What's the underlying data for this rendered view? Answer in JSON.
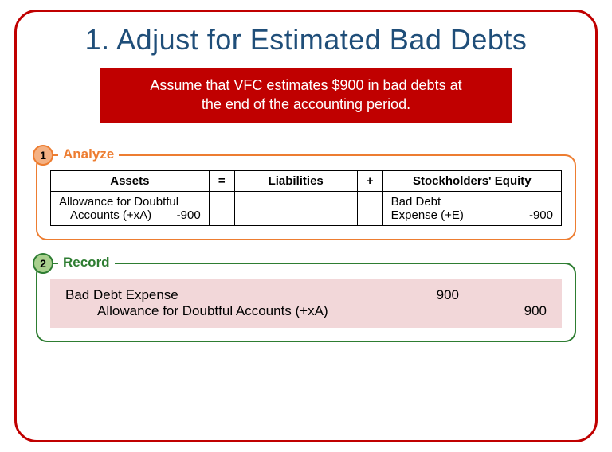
{
  "title": "1. Adjust for Estimated Bad Debts",
  "banner_line1": "Assume that VFC estimates $900 in bad debts at",
  "banner_line2": "the end of the accounting period.",
  "analyze": {
    "badge": "1",
    "label": "Analyze",
    "headers": {
      "assets": "Assets",
      "eq1": "=",
      "liab": "Liabilities",
      "eq2": "+",
      "se": "Stockholders' Equity"
    },
    "row": {
      "assets_l1": "Allowance for Doubtful",
      "assets_l2_label": "Accounts (+xA)",
      "assets_l2_val": "-900",
      "se_l1": "Bad Debt",
      "se_l2_label": "Expense (+E)",
      "se_l2_val": "-900"
    }
  },
  "record": {
    "badge": "2",
    "label": "Record",
    "line1_acct": "Bad Debt Expense",
    "line1_debit": "900",
    "line2_acct": "Allowance for Doubtful Accounts (+xA)",
    "line2_credit": "900"
  },
  "colors": {
    "frame": "#c00000",
    "title": "#1f4e79",
    "analyze": "#ed7d31",
    "record": "#2e7d32",
    "journal_bg": "#f2d7d9"
  }
}
